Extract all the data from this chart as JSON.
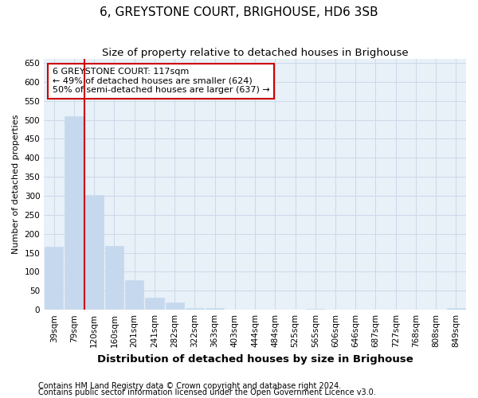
{
  "title": "6, GREYSTONE COURT, BRIGHOUSE, HD6 3SB",
  "subtitle": "Size of property relative to detached houses in Brighouse",
  "xlabel": "Distribution of detached houses by size in Brighouse",
  "ylabel": "Number of detached properties",
  "footnote1": "Contains HM Land Registry data © Crown copyright and database right 2024.",
  "footnote2": "Contains public sector information licensed under the Open Government Licence v3.0.",
  "categories": [
    "39sqm",
    "79sqm",
    "120sqm",
    "160sqm",
    "201sqm",
    "241sqm",
    "282sqm",
    "322sqm",
    "363sqm",
    "403sqm",
    "444sqm",
    "484sqm",
    "525sqm",
    "565sqm",
    "606sqm",
    "646sqm",
    "687sqm",
    "727sqm",
    "768sqm",
    "808sqm",
    "849sqm"
  ],
  "values": [
    165,
    510,
    302,
    168,
    78,
    32,
    20,
    5,
    5,
    0,
    0,
    0,
    0,
    2,
    0,
    0,
    0,
    0,
    0,
    0,
    5
  ],
  "bar_color": "#c5d8ed",
  "bar_edge_color": "#c5d8ed",
  "grid_color": "#ccd9e8",
  "bg_color": "#e8f0f8",
  "red_line_color": "#cc0000",
  "annotation_line1": "6 GREYSTONE COURT: 117sqm",
  "annotation_line2": "← 49% of detached houses are smaller (624)",
  "annotation_line3": "50% of semi-detached houses are larger (637) →",
  "ylim": [
    0,
    660
  ],
  "yticks": [
    0,
    50,
    100,
    150,
    200,
    250,
    300,
    350,
    400,
    450,
    500,
    550,
    600,
    650
  ],
  "title_fontsize": 11,
  "subtitle_fontsize": 9.5,
  "ylabel_fontsize": 8,
  "xlabel_fontsize": 9.5,
  "tick_fontsize": 7.5,
  "annotation_fontsize": 8,
  "footnote_fontsize": 7
}
